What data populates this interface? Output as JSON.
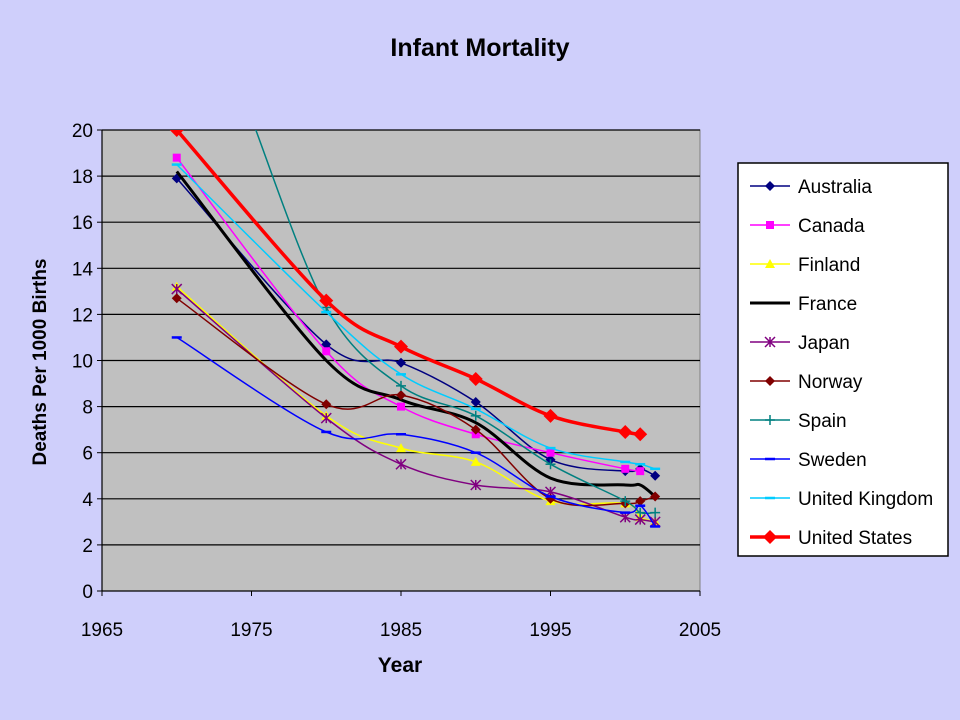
{
  "chart_data": {
    "type": "line",
    "title": "Infant Mortality",
    "xlabel": "Year",
    "ylabel": "Deaths Per 1000 Births",
    "xlim": [
      1965,
      2005
    ],
    "ylim": [
      0,
      20
    ],
    "x_ticks": [
      "1965",
      "1975",
      "1985",
      "1995",
      "2005"
    ],
    "y_ticks": [
      "0",
      "2",
      "4",
      "6",
      "8",
      "10",
      "12",
      "14",
      "16",
      "18",
      "20"
    ],
    "grid": "horizontal",
    "legend_position": "right",
    "plot_background": "#c0c0c0",
    "series": [
      {
        "name": "Australia",
        "color": "#000080",
        "marker": "diamond",
        "x": [
          1970,
          1980,
          1985,
          1990,
          1995,
          2000,
          2001,
          2002
        ],
        "y": [
          17.9,
          10.7,
          9.9,
          8.2,
          5.7,
          5.2,
          5.3,
          5.0
        ]
      },
      {
        "name": "Canada",
        "color": "#ff00ff",
        "marker": "square",
        "x": [
          1970,
          1980,
          1985,
          1990,
          1995,
          2000,
          2001
        ],
        "y": [
          18.8,
          10.4,
          8.0,
          6.8,
          6.0,
          5.3,
          5.2
        ]
      },
      {
        "name": "Finland",
        "color": "#ffff00",
        "marker": "triangle",
        "x": [
          1970,
          1980,
          1985,
          1990,
          1995,
          2000,
          2001,
          2002
        ],
        "y": [
          13.2,
          7.6,
          6.2,
          5.6,
          3.9,
          3.8,
          3.2,
          3.0
        ]
      },
      {
        "name": "France",
        "color": "#000000",
        "marker": "none",
        "x": [
          1970,
          1980,
          1985,
          1990,
          1995,
          2000,
          2001,
          2002
        ],
        "y": [
          18.2,
          10.0,
          8.3,
          7.3,
          4.9,
          4.6,
          4.6,
          4.1
        ]
      },
      {
        "name": "Japan",
        "color": "#800080",
        "marker": "asterisk",
        "x": [
          1970,
          1980,
          1985,
          1990,
          1995,
          2000,
          2001,
          2002
        ],
        "y": [
          13.1,
          7.5,
          5.5,
          4.6,
          4.3,
          3.2,
          3.1,
          3.0
        ]
      },
      {
        "name": "Norway",
        "color": "#800000",
        "marker": "diamond",
        "x": [
          1970,
          1980,
          1985,
          1990,
          1995,
          2000,
          2001,
          2002
        ],
        "y": [
          12.7,
          8.1,
          8.5,
          7.0,
          4.0,
          3.8,
          3.9,
          4.1
        ]
      },
      {
        "name": "Spain",
        "color": "#008080",
        "marker": "plus",
        "x": [
          1975,
          1980,
          1985,
          1990,
          1995,
          2000,
          2001,
          2002
        ],
        "y": [
          20.5,
          12.3,
          8.9,
          7.6,
          5.5,
          3.9,
          3.4,
          3.4
        ]
      },
      {
        "name": "Sweden",
        "color": "#0000ff",
        "marker": "dash",
        "x": [
          1970,
          1980,
          1985,
          1990,
          1995,
          2000,
          2001,
          2002
        ],
        "y": [
          11.0,
          6.9,
          6.8,
          6.0,
          4.1,
          3.4,
          3.7,
          2.8
        ]
      },
      {
        "name": "United Kingdom",
        "color": "#00ccff",
        "marker": "dash",
        "x": [
          1970,
          1980,
          1985,
          1990,
          1995,
          2000,
          2001,
          2002
        ],
        "y": [
          18.5,
          12.1,
          9.4,
          7.9,
          6.2,
          5.6,
          5.5,
          5.3
        ]
      },
      {
        "name": "United States",
        "color": "#ff0000",
        "marker": "diamond",
        "x": [
          1970,
          1980,
          1985,
          1990,
          1995,
          2000,
          2001
        ],
        "y": [
          20.0,
          12.6,
          10.6,
          9.2,
          7.6,
          6.9,
          6.8
        ]
      }
    ]
  }
}
